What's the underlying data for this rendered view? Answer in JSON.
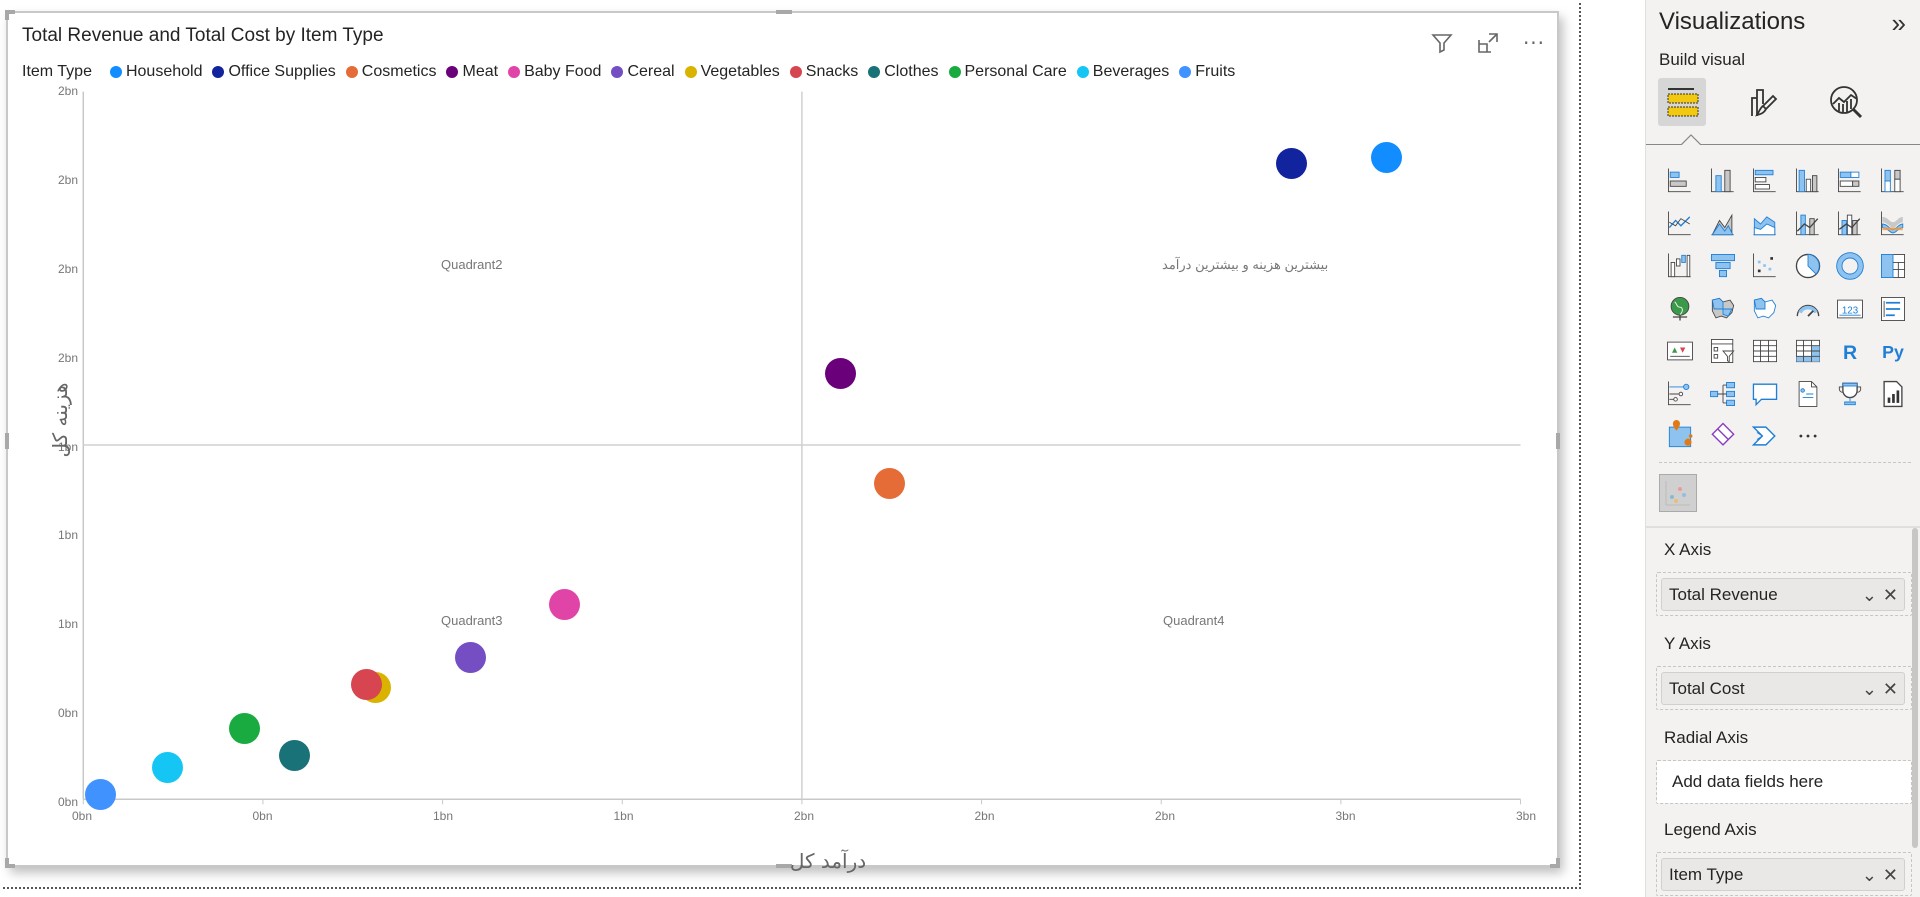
{
  "visual": {
    "title": "Total Revenue and Total Cost by Item Type",
    "header_icons": [
      "filter-icon",
      "focus-mode-icon",
      "more-options-icon"
    ],
    "more_label": "···"
  },
  "legend": {
    "title": "Item Type",
    "items": [
      {
        "label": "Household",
        "color": "#118DFF"
      },
      {
        "label": "Office Supplies",
        "color": "#12239E"
      },
      {
        "label": "Cosmetics",
        "color": "#E66C37"
      },
      {
        "label": "Meat",
        "color": "#6B007B"
      },
      {
        "label": "Baby Food",
        "color": "#E044A7"
      },
      {
        "label": "Cereal",
        "color": "#744EC2"
      },
      {
        "label": "Vegetables",
        "color": "#D9B300"
      },
      {
        "label": "Snacks",
        "color": "#D64550"
      },
      {
        "label": "Clothes",
        "color": "#197278"
      },
      {
        "label": "Personal Care",
        "color": "#1AAB40"
      },
      {
        "label": "Beverages",
        "color": "#15C6F4"
      },
      {
        "label": "Fruits",
        "color": "#4092FF"
      }
    ]
  },
  "axes": {
    "x_title": "درآمد کل",
    "y_title": "هزینه کل",
    "x_ticks": [
      "0bn",
      "0bn",
      "1bn",
      "1bn",
      "2bn",
      "2bn",
      "2bn",
      "3bn",
      "3bn"
    ],
    "y_ticks": [
      "0bn",
      "0bn",
      "1bn",
      "1bn",
      "1bn",
      "2bn",
      "2bn",
      "2bn",
      "2bn"
    ]
  },
  "quadrants": {
    "q1": "بیشترین هزینه و بیشترین درآمد",
    "q2": "Quadrant2",
    "q3": "Quadrant3",
    "q4": "Quadrant4"
  },
  "chart_data": {
    "type": "scatter",
    "title": "Total Revenue and Total Cost by Item Type",
    "xlabel": "درآمد کل",
    "ylabel": "هزینه کل",
    "xlim": [
      0,
      3.2
    ],
    "ylim": [
      0,
      2.4
    ],
    "units": "bn",
    "x_tick_values": [
      0,
      0.4,
      0.8,
      1.2,
      1.6,
      2.0,
      2.4,
      2.8,
      3.2
    ],
    "x_tick_labels": [
      "0bn",
      "0bn",
      "1bn",
      "1bn",
      "2bn",
      "2bn",
      "2bn",
      "3bn",
      "3bn"
    ],
    "y_tick_values": [
      0,
      0.3,
      0.6,
      0.9,
      1.2,
      1.5,
      1.8,
      2.1,
      2.4
    ],
    "y_tick_labels": [
      "0bn",
      "0bn",
      "1bn",
      "1bn",
      "1bn",
      "2bn",
      "2bn",
      "2bn",
      "2bn"
    ],
    "grid": false,
    "legend_position": "top",
    "legend_title": "Item Type",
    "quadrant_lines": {
      "x": 1.6,
      "y": 1.2
    },
    "quadrant_labels": [
      "بیشترین هزینه و بیشترین درآمد",
      "Quadrant2",
      "Quadrant3",
      "Quadrant4"
    ],
    "series": [
      {
        "name": "Household",
        "x": 2.89,
        "y": 2.18,
        "color": "#118DFF"
      },
      {
        "name": "Office Supplies",
        "x": 2.68,
        "y": 2.16,
        "color": "#12239E"
      },
      {
        "name": "Cosmetics",
        "x": 1.79,
        "y": 1.08,
        "color": "#E66C37"
      },
      {
        "name": "Meat",
        "x": 1.68,
        "y": 1.45,
        "color": "#6B007B"
      },
      {
        "name": "Baby Food",
        "x": 1.07,
        "y": 0.67,
        "color": "#E044A7"
      },
      {
        "name": "Cereal",
        "x": 0.86,
        "y": 0.49,
        "color": "#744EC2"
      },
      {
        "name": "Vegetables",
        "x": 0.65,
        "y": 0.39,
        "color": "#D9B300"
      },
      {
        "name": "Snacks",
        "x": 0.63,
        "y": 0.4,
        "color": "#D64550"
      },
      {
        "name": "Clothes",
        "x": 0.47,
        "y": 0.16,
        "color": "#197278"
      },
      {
        "name": "Personal Care",
        "x": 0.36,
        "y": 0.25,
        "color": "#1AAB40"
      },
      {
        "name": "Beverages",
        "x": 0.19,
        "y": 0.12,
        "color": "#15C6F4"
      },
      {
        "name": "Fruits",
        "x": 0.04,
        "y": 0.03,
        "color": "#4092FF"
      }
    ]
  },
  "panel": {
    "title": "Visualizations",
    "collapse_glyph": "»",
    "build_label": "Build visual",
    "more_visuals": "···",
    "wells": [
      {
        "label": "X Axis",
        "value": "Total Revenue"
      },
      {
        "label": "Y Axis",
        "value": "Total Cost"
      },
      {
        "label": "Radial Axis",
        "placeholder": "Add data fields here"
      },
      {
        "label": "Legend Axis",
        "value": "Item Type"
      }
    ]
  }
}
